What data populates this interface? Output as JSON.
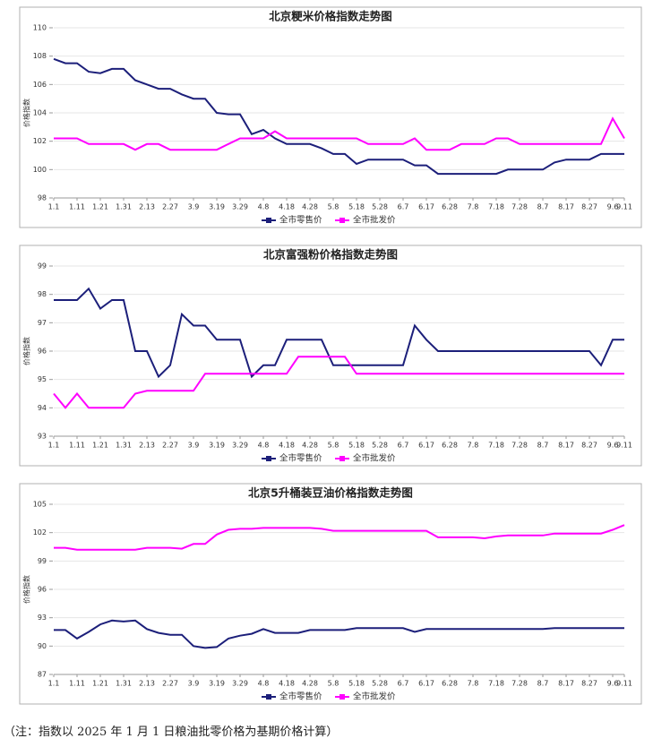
{
  "chart_data": [
    {
      "type": "line",
      "title": "北京粳米价格指数走势图",
      "y_label": "价格指数",
      "categories": [
        "1.1",
        null,
        "1.11",
        null,
        "1.21",
        null,
        "1.31",
        null,
        "2.13",
        null,
        "2.27",
        null,
        "3.9",
        null,
        "3.19",
        null,
        "3.29",
        null,
        "4.8",
        null,
        "4.18",
        null,
        "4.28",
        null,
        "5.8",
        null,
        "5.18",
        null,
        "5.28",
        null,
        "6.7",
        null,
        "6.17",
        null,
        "6.28",
        null,
        "7.8",
        null,
        "7.18",
        null,
        "7.28",
        null,
        "8.7",
        null,
        "8.17",
        null,
        "8.27",
        null,
        "9.6",
        "9.11"
      ],
      "series": [
        {
          "name": "全市零售价",
          "color": "#1c1f7a",
          "values": [
            107.8,
            107.5,
            107.5,
            106.9,
            106.8,
            107.1,
            107.1,
            106.3,
            106.0,
            105.7,
            105.7,
            105.3,
            105.0,
            105.0,
            104.0,
            103.9,
            103.9,
            102.5,
            102.8,
            102.2,
            101.8,
            101.8,
            101.8,
            101.5,
            101.1,
            101.1,
            100.4,
            100.7,
            100.7,
            100.7,
            100.7,
            100.3,
            100.3,
            99.7,
            99.7,
            99.7,
            99.7,
            99.7,
            99.7,
            100.0,
            100.0,
            100.0,
            100.0,
            100.5,
            100.7,
            100.7,
            100.7,
            101.1,
            101.1,
            101.1
          ]
        },
        {
          "name": "全市批发价",
          "color": "#ff00ff",
          "values": [
            102.2,
            102.2,
            102.2,
            101.8,
            101.8,
            101.8,
            101.8,
            101.4,
            101.8,
            101.8,
            101.4,
            101.4,
            101.4,
            101.4,
            101.4,
            101.8,
            102.2,
            102.2,
            102.2,
            102.7,
            102.2,
            102.2,
            102.2,
            102.2,
            102.2,
            102.2,
            102.2,
            101.8,
            101.8,
            101.8,
            101.8,
            102.2,
            101.4,
            101.4,
            101.4,
            101.8,
            101.8,
            101.8,
            102.2,
            102.2,
            101.8,
            101.8,
            101.8,
            101.8,
            101.8,
            101.8,
            101.8,
            101.8,
            103.6,
            102.2
          ]
        }
      ],
      "ylim": [
        98,
        110
      ],
      "yticks": [
        98,
        100,
        102,
        104,
        106,
        108,
        110
      ],
      "grid": true,
      "legend": "bottom"
    },
    {
      "type": "line",
      "title": "北京富强粉价格指数走势图",
      "y_label": "价格指数",
      "categories": [
        "1.1",
        null,
        "1.11",
        null,
        "1.21",
        null,
        "1.31",
        null,
        "2.13",
        null,
        "2.27",
        null,
        "3.9",
        null,
        "3.19",
        null,
        "3.29",
        null,
        "4.8",
        null,
        "4.18",
        null,
        "4.28",
        null,
        "5.8",
        null,
        "5.18",
        null,
        "5.28",
        null,
        "6.7",
        null,
        "6.17",
        null,
        "6.28",
        null,
        "7.8",
        null,
        "7.18",
        null,
        "7.28",
        null,
        "8.7",
        null,
        "8.17",
        null,
        "8.27",
        null,
        "9.6",
        "9.11"
      ],
      "series": [
        {
          "name": "全市零售价",
          "color": "#1c1f7a",
          "values": [
            97.8,
            97.8,
            97.8,
            98.2,
            97.5,
            97.8,
            97.8,
            96.0,
            96.0,
            95.1,
            95.5,
            97.3,
            96.9,
            96.9,
            96.4,
            96.4,
            96.4,
            95.1,
            95.5,
            95.5,
            96.4,
            96.4,
            96.4,
            96.4,
            95.5,
            95.5,
            95.5,
            95.5,
            95.5,
            95.5,
            95.5,
            96.9,
            96.4,
            96.0,
            96.0,
            96.0,
            96.0,
            96.0,
            96.0,
            96.0,
            96.0,
            96.0,
            96.0,
            96.0,
            96.0,
            96.0,
            96.0,
            95.5,
            96.4,
            96.4
          ]
        },
        {
          "name": "全市批发价",
          "color": "#ff00ff",
          "values": [
            94.5,
            94.0,
            94.5,
            94.0,
            94.0,
            94.0,
            94.0,
            94.5,
            94.6,
            94.6,
            94.6,
            94.6,
            94.6,
            95.2,
            95.2,
            95.2,
            95.2,
            95.2,
            95.2,
            95.2,
            95.2,
            95.8,
            95.8,
            95.8,
            95.8,
            95.8,
            95.2,
            95.2,
            95.2,
            95.2,
            95.2,
            95.2,
            95.2,
            95.2,
            95.2,
            95.2,
            95.2,
            95.2,
            95.2,
            95.2,
            95.2,
            95.2,
            95.2,
            95.2,
            95.2,
            95.2,
            95.2,
            95.2,
            95.2,
            95.2
          ]
        }
      ],
      "ylim": [
        93,
        99
      ],
      "yticks": [
        93,
        94,
        95,
        96,
        97,
        98,
        99
      ],
      "grid": true,
      "legend": "bottom"
    },
    {
      "type": "line",
      "title": "北京5升桶装豆油价格指数走势图",
      "y_label": "价格指数",
      "categories": [
        "1.1",
        null,
        "1.11",
        null,
        "1.21",
        null,
        "1.31",
        null,
        "2.13",
        null,
        "2.27",
        null,
        "3.9",
        null,
        "3.19",
        null,
        "3.29",
        null,
        "4.8",
        null,
        "4.18",
        null,
        "4.28",
        null,
        "5.8",
        null,
        "5.18",
        null,
        "5.28",
        null,
        "6.7",
        null,
        "6.17",
        null,
        "6.28",
        null,
        "7.8",
        null,
        "7.18",
        null,
        "7.28",
        null,
        "8.7",
        null,
        "8.17",
        null,
        "8.27",
        null,
        "9.6",
        "9.11"
      ],
      "series": [
        {
          "name": "全市零售价",
          "color": "#1c1f7a",
          "values": [
            91.7,
            91.7,
            90.8,
            91.5,
            92.3,
            92.7,
            92.6,
            92.7,
            91.8,
            91.4,
            91.2,
            91.2,
            90.0,
            89.8,
            89.9,
            90.8,
            91.1,
            91.3,
            91.8,
            91.4,
            91.4,
            91.4,
            91.7,
            91.7,
            91.7,
            91.7,
            91.9,
            91.9,
            91.9,
            91.9,
            91.9,
            91.5,
            91.8,
            91.8,
            91.8,
            91.8,
            91.8,
            91.8,
            91.8,
            91.8,
            91.8,
            91.8,
            91.8,
            91.9,
            91.9,
            91.9,
            91.9,
            91.9,
            91.9,
            91.9
          ]
        },
        {
          "name": "全市批发价",
          "color": "#ff00ff",
          "values": [
            100.4,
            100.4,
            100.2,
            100.2,
            100.2,
            100.2,
            100.2,
            100.2,
            100.4,
            100.4,
            100.4,
            100.3,
            100.8,
            100.8,
            101.8,
            102.3,
            102.4,
            102.4,
            102.5,
            102.5,
            102.5,
            102.5,
            102.5,
            102.4,
            102.2,
            102.2,
            102.2,
            102.2,
            102.2,
            102.2,
            102.2,
            102.2,
            102.2,
            101.5,
            101.5,
            101.5,
            101.5,
            101.4,
            101.6,
            101.7,
            101.7,
            101.7,
            101.7,
            101.9,
            101.9,
            101.9,
            101.9,
            101.9,
            102.3,
            102.8
          ]
        }
      ],
      "ylim": [
        87,
        105
      ],
      "yticks": [
        87,
        90,
        93,
        96,
        99,
        102,
        105
      ],
      "grid": true,
      "legend": "bottom"
    }
  ],
  "footnote": "（注：指数以 2025 年 1 月 1 日粮油批零价格为基期价格计算）"
}
